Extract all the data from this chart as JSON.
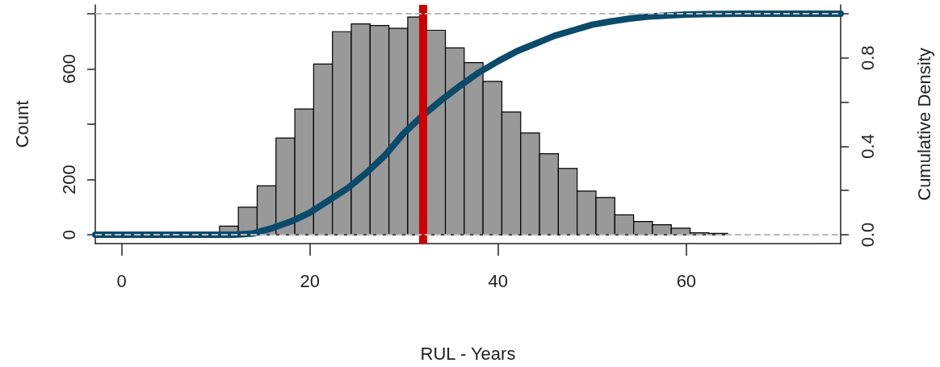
{
  "chart_data": {
    "type": "histogram",
    "xlabel": "RUL - Years",
    "ylabel": "Count",
    "y2label": "Cumulative Density",
    "bins": [
      10.4,
      12.4,
      14.4,
      16.4,
      18.4,
      20.4,
      22.4,
      24.4,
      26.4,
      28.4,
      30.4,
      32.4,
      34.4,
      36.4,
      38.4,
      40.4,
      42.4,
      44.4,
      46.4,
      48.4,
      50.4,
      52.4,
      54.4,
      56.4,
      58.4,
      60.4,
      62.4,
      64.4,
      66.4,
      68.4
    ],
    "series": [
      {
        "color": "#999999",
        "values": [
          31,
          100,
          177,
          350,
          455,
          618,
          735,
          763,
          757,
          747,
          788,
          740,
          676,
          623,
          555,
          444,
          368,
          293,
          240,
          158,
          135,
          72,
          48,
          36,
          24,
          7,
          5,
          null,
          null
        ]
      },
      {
        "type": "line",
        "axis": "y2",
        "color": "#0b4a6a",
        "x": [
          -2.8,
          12,
          14,
          16,
          18,
          20,
          22,
          24,
          26,
          28,
          30,
          32,
          34,
          36,
          38,
          40,
          42,
          44,
          46,
          48,
          50,
          52,
          54,
          56,
          58,
          60,
          62,
          64,
          66,
          76.4
        ],
        "values": [
          0,
          0,
          0.006,
          0.03,
          0.06,
          0.1,
          0.155,
          0.21,
          0.28,
          0.36,
          0.46,
          0.54,
          0.61,
          0.675,
          0.735,
          0.785,
          0.83,
          0.865,
          0.9,
          0.925,
          0.95,
          0.965,
          0.978,
          0.987,
          0.992,
          0.996,
          0.998,
          0.999,
          1,
          1
        ]
      }
    ],
    "xlim": [
      -2.8,
      76.4
    ],
    "xticks": [
      0,
      20,
      40,
      60
    ],
    "ylim": [
      -32,
      832
    ],
    "yticks": [
      0,
      200,
      {
        "value": 400,
        "label": null
      },
      600,
      {
        "value": 800,
        "label": null
      }
    ],
    "y2lim": [
      -0.04,
      1.04
    ],
    "y2ticks": [
      {
        "value": 0,
        "label": "0.0"
      },
      {
        "value": 0.2,
        "label": null
      },
      {
        "value": 0.4,
        "label": "0.4"
      },
      {
        "value": 0.6,
        "label": null
      },
      {
        "value": 0.8,
        "label": "0.8"
      },
      {
        "value": 1,
        "label": null
      }
    ],
    "ref_lines": [
      {
        "axis": "x",
        "value": 32,
        "color": "#cc0000",
        "line_style": "solid"
      },
      {
        "axis": "y2",
        "value": 0,
        "color": "#bbbbbb",
        "line_style": "dashed"
      },
      {
        "axis": "y2",
        "value": 1,
        "color": "#bbbbbb",
        "line_style": "dashed"
      }
    ]
  }
}
